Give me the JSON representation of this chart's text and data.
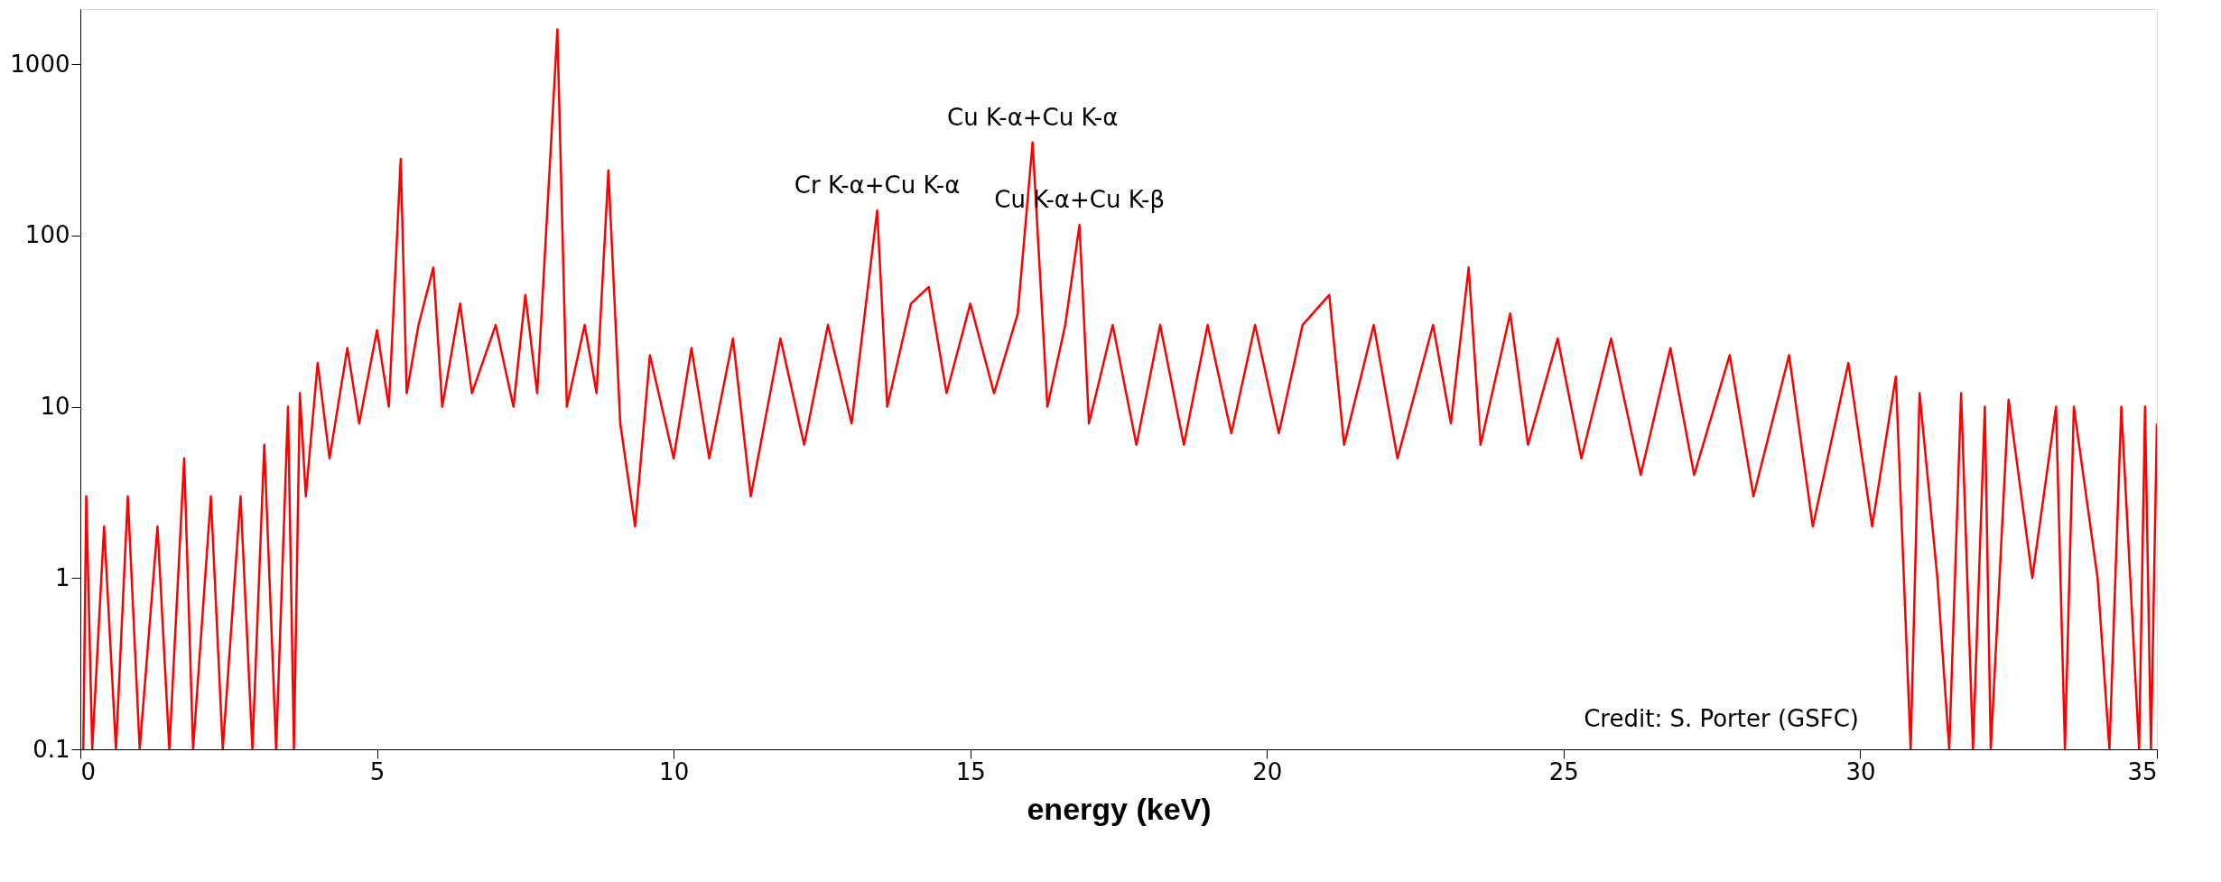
{
  "chart_data": {
    "type": "line",
    "xlabel": "energy (keV)",
    "log": "y",
    "xlim": [
      0,
      35
    ],
    "xticks": [
      0,
      5,
      10,
      15,
      20,
      25,
      30,
      35
    ],
    "ylim": [
      0.1,
      2100
    ],
    "yticks": [
      0.1,
      1,
      10,
      100,
      1000
    ],
    "grid": false,
    "series": [
      {
        "color": "#ff0000",
        "x": [
          0.05,
          0.1,
          0.2,
          0.4,
          0.6,
          0.8,
          1.0,
          1.3,
          1.5,
          1.75,
          1.9,
          2.2,
          2.4,
          2.7,
          2.9,
          3.1,
          3.3,
          3.5,
          3.6,
          3.7,
          3.8,
          4.0,
          4.2,
          4.5,
          4.7,
          5.0,
          5.2,
          5.4,
          5.5,
          5.7,
          5.95,
          6.1,
          6.4,
          6.6,
          7.0,
          7.3,
          7.5,
          7.7,
          8.04,
          8.2,
          8.5,
          8.7,
          8.9,
          9.1,
          9.35,
          9.6,
          10.0,
          10.3,
          10.6,
          11.0,
          11.3,
          11.8,
          12.2,
          12.6,
          13.0,
          13.43,
          13.6,
          14.0,
          14.3,
          14.6,
          15.0,
          15.4,
          15.8,
          16.05,
          16.3,
          16.6,
          16.84,
          17.0,
          17.4,
          17.8,
          18.2,
          18.6,
          19.0,
          19.4,
          19.8,
          20.2,
          20.6,
          21.05,
          21.3,
          21.8,
          22.2,
          22.8,
          23.1,
          23.4,
          23.6,
          24.1,
          24.4,
          24.9,
          25.3,
          25.8,
          26.3,
          26.8,
          27.2,
          27.8,
          28.2,
          28.8,
          29.2,
          29.8,
          30.2,
          30.6,
          30.85,
          31.0,
          31.3,
          31.5,
          31.7,
          31.9,
          32.1,
          32.2,
          32.5,
          32.9,
          33.3,
          33.45,
          33.6,
          34.0,
          34.2,
          34.4,
          34.7,
          34.8,
          34.9,
          35.0
        ],
        "values": [
          0.1,
          3,
          0.1,
          2,
          0.1,
          3,
          0.1,
          2,
          0.1,
          5,
          0.1,
          3,
          0.1,
          3,
          0.1,
          6,
          0.1,
          10,
          0.1,
          12,
          3,
          18,
          5,
          22,
          8,
          28,
          10,
          280,
          12,
          30,
          65,
          10,
          40,
          12,
          30,
          10,
          45,
          12,
          1600,
          10,
          30,
          12,
          240,
          8,
          2,
          20,
          5,
          22,
          5,
          25,
          3,
          25,
          6,
          30,
          8,
          140,
          10,
          40,
          50,
          12,
          40,
          12,
          35,
          350,
          10,
          30,
          115,
          8,
          30,
          6,
          30,
          6,
          30,
          7,
          30,
          7,
          30,
          45,
          6,
          30,
          5,
          30,
          8,
          65,
          6,
          35,
          6,
          25,
          5,
          25,
          4,
          22,
          4,
          20,
          3,
          20,
          2,
          18,
          2,
          15,
          0.1,
          12,
          1,
          0.1,
          12,
          0.1,
          10,
          0.1,
          11,
          1,
          10,
          0.1,
          10,
          1,
          0.1,
          10,
          0.1,
          10,
          0.1,
          8
        ]
      }
    ],
    "annotations": [
      {
        "text": "Cr K-α+Cu K-α",
        "x": 13.43,
        "y": 140
      },
      {
        "text": "Cu K-α+Cu K-α",
        "x": 16.05,
        "y": 350
      },
      {
        "text": "Cu K-α+Cu K-β",
        "x": 16.84,
        "y": 115
      },
      "Credit: S. Porter (GSFC)"
    ]
  }
}
